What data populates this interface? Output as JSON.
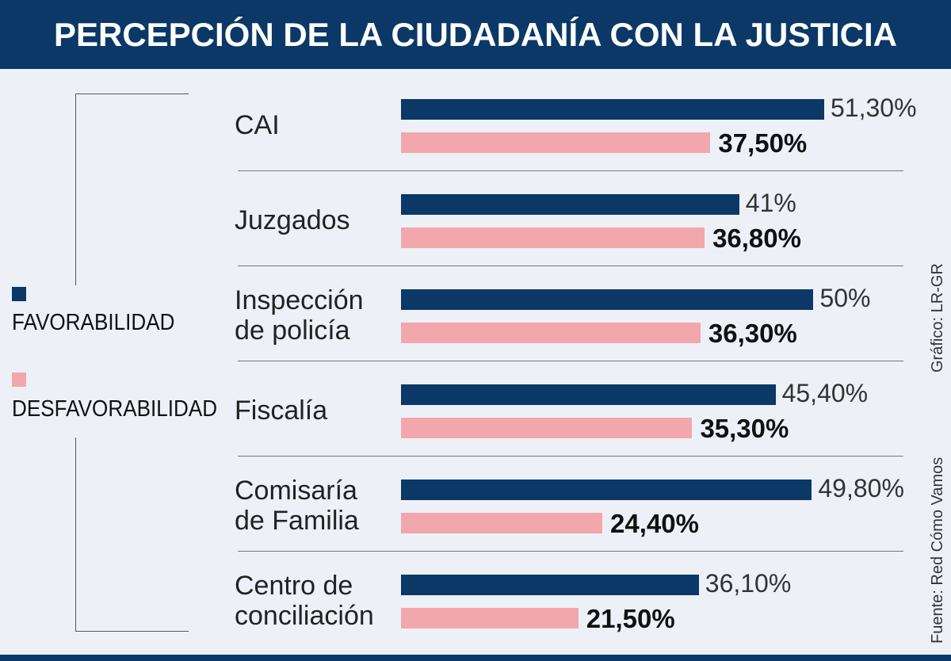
{
  "title": "PERCEPCIÓN DE LA CIUDADANÍA CON LA JUSTICIA",
  "credits": {
    "grafico": "Gráfico: LR-GR",
    "fuente": "Fuente: Red Cómo Vamos"
  },
  "colors": {
    "favorable": "#0b3866",
    "desfavorable": "#f2a7ad",
    "header": "#0b3866",
    "background": "#edf1f7"
  },
  "chart_data": {
    "type": "bar",
    "orientation": "horizontal",
    "title": "PERCEPCIÓN DE LA CIUDADANÍA CON LA JUSTICIA",
    "categories": [
      "CAI",
      "Juzgados",
      "Inspección\nde policía",
      "Fiscalía",
      "Comisaría\nde Familia",
      "Centro de\nconciliación"
    ],
    "series": [
      {
        "name": "FAVORABILIDAD",
        "values": [
          51.3,
          41,
          50,
          45.4,
          49.8,
          36.1
        ],
        "labels": [
          "51,30%",
          "41%",
          "50%",
          "45,40%",
          "49,80%",
          "36,10%"
        ]
      },
      {
        "name": "DESFAVORABILIDAD",
        "values": [
          37.5,
          36.8,
          36.3,
          35.3,
          24.4,
          21.5
        ],
        "labels": [
          "37,50%",
          "36,80%",
          "36,30%",
          "35,30%",
          "24,40%",
          "21,50%"
        ]
      }
    ],
    "legend": "left",
    "grid": false
  }
}
